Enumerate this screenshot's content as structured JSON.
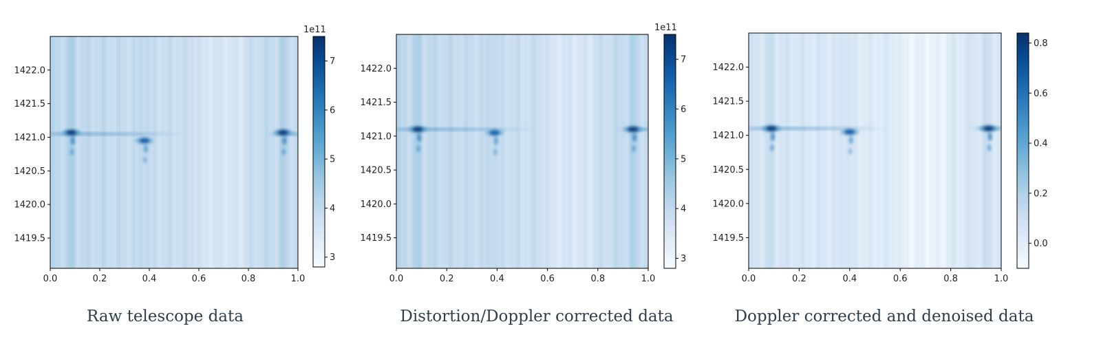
{
  "chart_data": [
    {
      "type": "heatmap",
      "caption": "Raw telescope data",
      "xlim": [
        0.0,
        1.0
      ],
      "ylim": [
        1419.05,
        1422.5
      ],
      "x_ticks": [
        "0.0",
        "0.2",
        "0.4",
        "0.6",
        "0.8",
        "1.0"
      ],
      "y_ticks": [
        "1419.5",
        "1420.0",
        "1420.5",
        "1421.0",
        "1421.5",
        "1422.0"
      ],
      "colorbar": {
        "min": 2.8,
        "max": 7.5,
        "ticks": [
          "3",
          "4",
          "5",
          "6",
          "7"
        ],
        "offset": "1e11",
        "cmap": "Blues"
      },
      "background_level": 0.22,
      "line_center_y": 1421.05,
      "bright_features": [
        {
          "x": 0.085,
          "y": 1421.07,
          "intensity": 1.0
        },
        {
          "x": 0.38,
          "y": 1420.95,
          "intensity": 0.85
        },
        {
          "x": 0.94,
          "y": 1421.07,
          "intensity": 1.0
        }
      ]
    },
    {
      "type": "heatmap",
      "caption": "Distortion/Doppler corrected data",
      "xlim": [
        0.0,
        1.0
      ],
      "ylim": [
        1419.05,
        1422.5
      ],
      "x_ticks": [
        "0.0",
        "0.2",
        "0.4",
        "0.6",
        "0.8",
        "1.0"
      ],
      "y_ticks": [
        "1419.5",
        "1420.0",
        "1420.5",
        "1421.0",
        "1421.5",
        "1422.0"
      ],
      "colorbar": {
        "min": 2.8,
        "max": 7.5,
        "ticks": [
          "3",
          "4",
          "5",
          "6",
          "7"
        ],
        "offset": "1e11",
        "cmap": "Blues"
      },
      "background_level": 0.22,
      "line_center_y": 1421.1,
      "bright_features": [
        {
          "x": 0.085,
          "y": 1421.1,
          "intensity": 1.0
        },
        {
          "x": 0.39,
          "y": 1421.05,
          "intensity": 0.85
        },
        {
          "x": 0.94,
          "y": 1421.1,
          "intensity": 1.0
        }
      ]
    },
    {
      "type": "heatmap",
      "caption": "Doppler corrected and denoised data",
      "xlim": [
        0.0,
        1.0
      ],
      "ylim": [
        1419.05,
        1422.5
      ],
      "x_ticks": [
        "0.0",
        "0.2",
        "0.4",
        "0.6",
        "0.8",
        "1.0"
      ],
      "y_ticks": [
        "1419.5",
        "1420.0",
        "1420.5",
        "1421.0",
        "1421.5",
        "1422.0"
      ],
      "colorbar": {
        "min": -0.1,
        "max": 0.84,
        "ticks": [
          "0.0",
          "0.2",
          "0.4",
          "0.6",
          "0.8"
        ],
        "offset": "",
        "cmap": "Blues"
      },
      "background_level": 0.13,
      "line_center_y": 1421.1,
      "bright_features": [
        {
          "x": 0.09,
          "y": 1421.1,
          "intensity": 1.0
        },
        {
          "x": 0.4,
          "y": 1421.05,
          "intensity": 0.85
        },
        {
          "x": 0.95,
          "y": 1421.1,
          "intensity": 1.0
        }
      ]
    }
  ]
}
